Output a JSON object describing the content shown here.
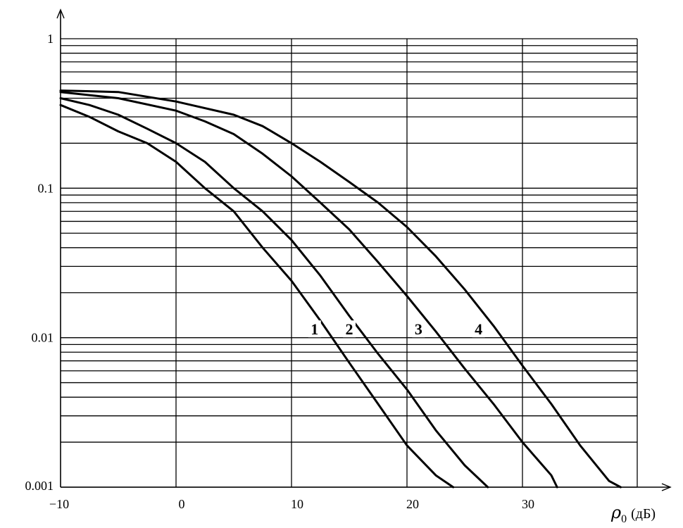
{
  "chart_data": {
    "type": "line",
    "title": "",
    "xlabel": "ρ0 (дБ)",
    "xlabel_parts": {
      "symbol": "ρ",
      "subscript": "0",
      "unit": "(дБ)"
    },
    "ylabel": "",
    "xlim": [
      -10,
      40
    ],
    "ylim": [
      0.001,
      1
    ],
    "yscale": "log",
    "grid": true,
    "x_ticks": [
      {
        "value": -10,
        "label": "−10"
      },
      {
        "value": 0,
        "label": "0"
      },
      {
        "value": 10,
        "label": "10"
      },
      {
        "value": 20,
        "label": "20"
      },
      {
        "value": 30,
        "label": "30"
      }
    ],
    "y_ticks": [
      {
        "value": 1,
        "label": "1"
      },
      {
        "value": 0.1,
        "label": "0.1"
      },
      {
        "value": 0.01,
        "label": "0.01"
      },
      {
        "value": 0.001,
        "label": "0.001"
      }
    ],
    "series": [
      {
        "name": "1",
        "x": [
          -10,
          -7.5,
          -5,
          -2.5,
          0,
          2.5,
          5,
          7.5,
          10,
          12.5,
          15,
          17.5,
          20,
          22.5,
          24
        ],
        "y": [
          0.36,
          0.3,
          0.24,
          0.2,
          0.15,
          0.1,
          0.07,
          0.04,
          0.024,
          0.013,
          0.0068,
          0.0036,
          0.0019,
          0.0012,
          0.001
        ]
      },
      {
        "name": "2",
        "x": [
          -10,
          -7.5,
          -5,
          -2.5,
          0,
          2.5,
          5,
          7.5,
          10,
          12.5,
          15,
          17.5,
          20,
          22.5,
          25,
          27
        ],
        "y": [
          0.4,
          0.36,
          0.31,
          0.25,
          0.2,
          0.15,
          0.1,
          0.07,
          0.045,
          0.026,
          0.014,
          0.0078,
          0.0045,
          0.0024,
          0.0014,
          0.001
        ]
      },
      {
        "name": "3",
        "x": [
          -10,
          -5,
          0,
          2.5,
          5,
          7.5,
          10,
          12.5,
          15,
          17.5,
          20,
          22.5,
          25,
          27.5,
          30,
          32.5,
          33
        ],
        "y": [
          0.44,
          0.4,
          0.33,
          0.28,
          0.23,
          0.17,
          0.12,
          0.08,
          0.053,
          0.032,
          0.019,
          0.011,
          0.0062,
          0.0036,
          0.002,
          0.0012,
          0.001
        ]
      },
      {
        "name": "4",
        "x": [
          -10,
          -5,
          0,
          5,
          7.5,
          10,
          12.5,
          15,
          17.5,
          20,
          22.5,
          25,
          27.5,
          30,
          32.5,
          35,
          37.5,
          38.5
        ],
        "y": [
          0.45,
          0.44,
          0.38,
          0.31,
          0.26,
          0.2,
          0.15,
          0.11,
          0.08,
          0.055,
          0.035,
          0.021,
          0.012,
          0.0065,
          0.0036,
          0.0019,
          0.0011,
          0.001
        ]
      }
    ],
    "curve_label_positions": [
      {
        "name": "1",
        "x": 12,
        "y": 0.0105
      },
      {
        "name": "2",
        "x": 15,
        "y": 0.0105
      },
      {
        "name": "3",
        "x": 21,
        "y": 0.0105
      },
      {
        "name": "4",
        "x": 26.2,
        "y": 0.0105
      }
    ],
    "colors": {
      "line": "#000000",
      "grid": "#000000",
      "background": "#ffffff"
    }
  }
}
